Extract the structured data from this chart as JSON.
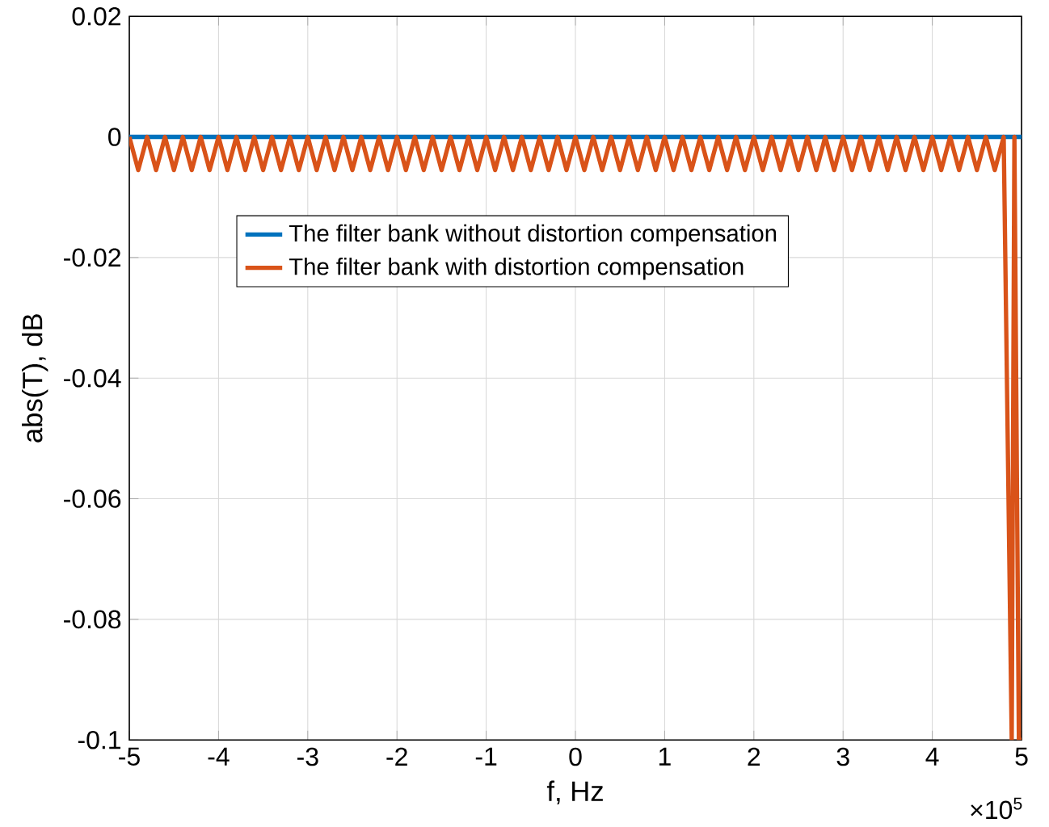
{
  "chart_data": {
    "type": "line",
    "xlabel": "f, Hz",
    "ylabel": "abs(T), dB",
    "annotations": [
      "×10$^{5}$"
    ],
    "series": [
      {
        "name": "The filter bank without distortion compensation",
        "color": "#0072bd",
        "x": [
          -5,
          5
        ],
        "values": [
          0,
          0
        ]
      },
      {
        "name": "The filter bank with distortion compensation",
        "color": "#d95319",
        "x": [
          -5,
          -4.9,
          -4.8,
          -4.7,
          -4.6,
          -4.5,
          -4.4,
          -4.3,
          -4.2,
          -4.1,
          -4,
          -3.9,
          -3.8,
          -3.7,
          -3.6,
          -3.5,
          -3.4,
          -3.3,
          -3.2,
          -3.1,
          -3,
          -2.9,
          -2.8,
          -2.7,
          -2.6,
          -2.5,
          -2.4,
          -2.3,
          -2.2,
          -2.1,
          -2,
          -1.9,
          -1.8,
          -1.7,
          -1.6,
          -1.5,
          -1.4,
          -1.3,
          -1.2,
          -1.1,
          -1,
          -0.9,
          -0.8,
          -0.7,
          -0.6,
          -0.5,
          -0.4,
          -0.3,
          -0.2,
          -0.1,
          0,
          0.1,
          0.2,
          0.3,
          0.4,
          0.5,
          0.6,
          0.7,
          0.8,
          0.9,
          1,
          1.1,
          1.2,
          1.3,
          1.4,
          1.5,
          1.6,
          1.7,
          1.8,
          1.9,
          2,
          2.1,
          2.2,
          2.3,
          2.4,
          2.5,
          2.6,
          2.7,
          2.8,
          2.9,
          3,
          3.1,
          3.2,
          3.3,
          3.4,
          3.5,
          3.6,
          3.7,
          3.8,
          3.9,
          4,
          4.1,
          4.2,
          4.3,
          4.4,
          4.5,
          4.6,
          4.7,
          4.8,
          4.89,
          4.92,
          4.97,
          5
        ],
        "values": [
          0,
          -0.0055,
          0,
          -0.0055,
          0,
          -0.0055,
          0,
          -0.0055,
          0,
          -0.0055,
          0,
          -0.0055,
          0,
          -0.0055,
          0,
          -0.0055,
          0,
          -0.0055,
          0,
          -0.0055,
          0,
          -0.0055,
          0,
          -0.0055,
          0,
          -0.0055,
          0,
          -0.0055,
          0,
          -0.0055,
          0,
          -0.0055,
          0,
          -0.0055,
          0,
          -0.0055,
          0,
          -0.0055,
          0,
          -0.0055,
          0,
          -0.0055,
          0,
          -0.0055,
          0,
          -0.0055,
          0,
          -0.0055,
          0,
          -0.0055,
          0,
          -0.0055,
          0,
          -0.0055,
          0,
          -0.0055,
          0,
          -0.0055,
          0,
          -0.0055,
          0,
          -0.0055,
          0,
          -0.0055,
          0,
          -0.0055,
          0,
          -0.0055,
          0,
          -0.0055,
          0,
          -0.0055,
          0,
          -0.0055,
          0,
          -0.0055,
          0,
          -0.0055,
          0,
          -0.0055,
          0,
          -0.0055,
          0,
          -0.0055,
          0,
          -0.0055,
          0,
          -0.0055,
          0,
          -0.0055,
          0,
          -0.0055,
          0,
          -0.0055,
          0,
          -0.0055,
          0,
          -0.0055,
          0,
          -0.1,
          0,
          -0.1,
          -0.1
        ]
      }
    ],
    "xlim": [
      -5,
      5
    ],
    "ylim": [
      -0.1,
      0.02
    ],
    "xticks": [
      -5,
      -4,
      -3,
      -2,
      -1,
      0,
      1,
      2,
      3,
      4,
      5
    ],
    "yticks": [
      -0.1,
      -0.08,
      -0.06,
      -0.04,
      -0.02,
      0,
      0.02
    ],
    "grid": true,
    "legend": "top left",
    "marker": "none",
    "line_style": "solid"
  }
}
